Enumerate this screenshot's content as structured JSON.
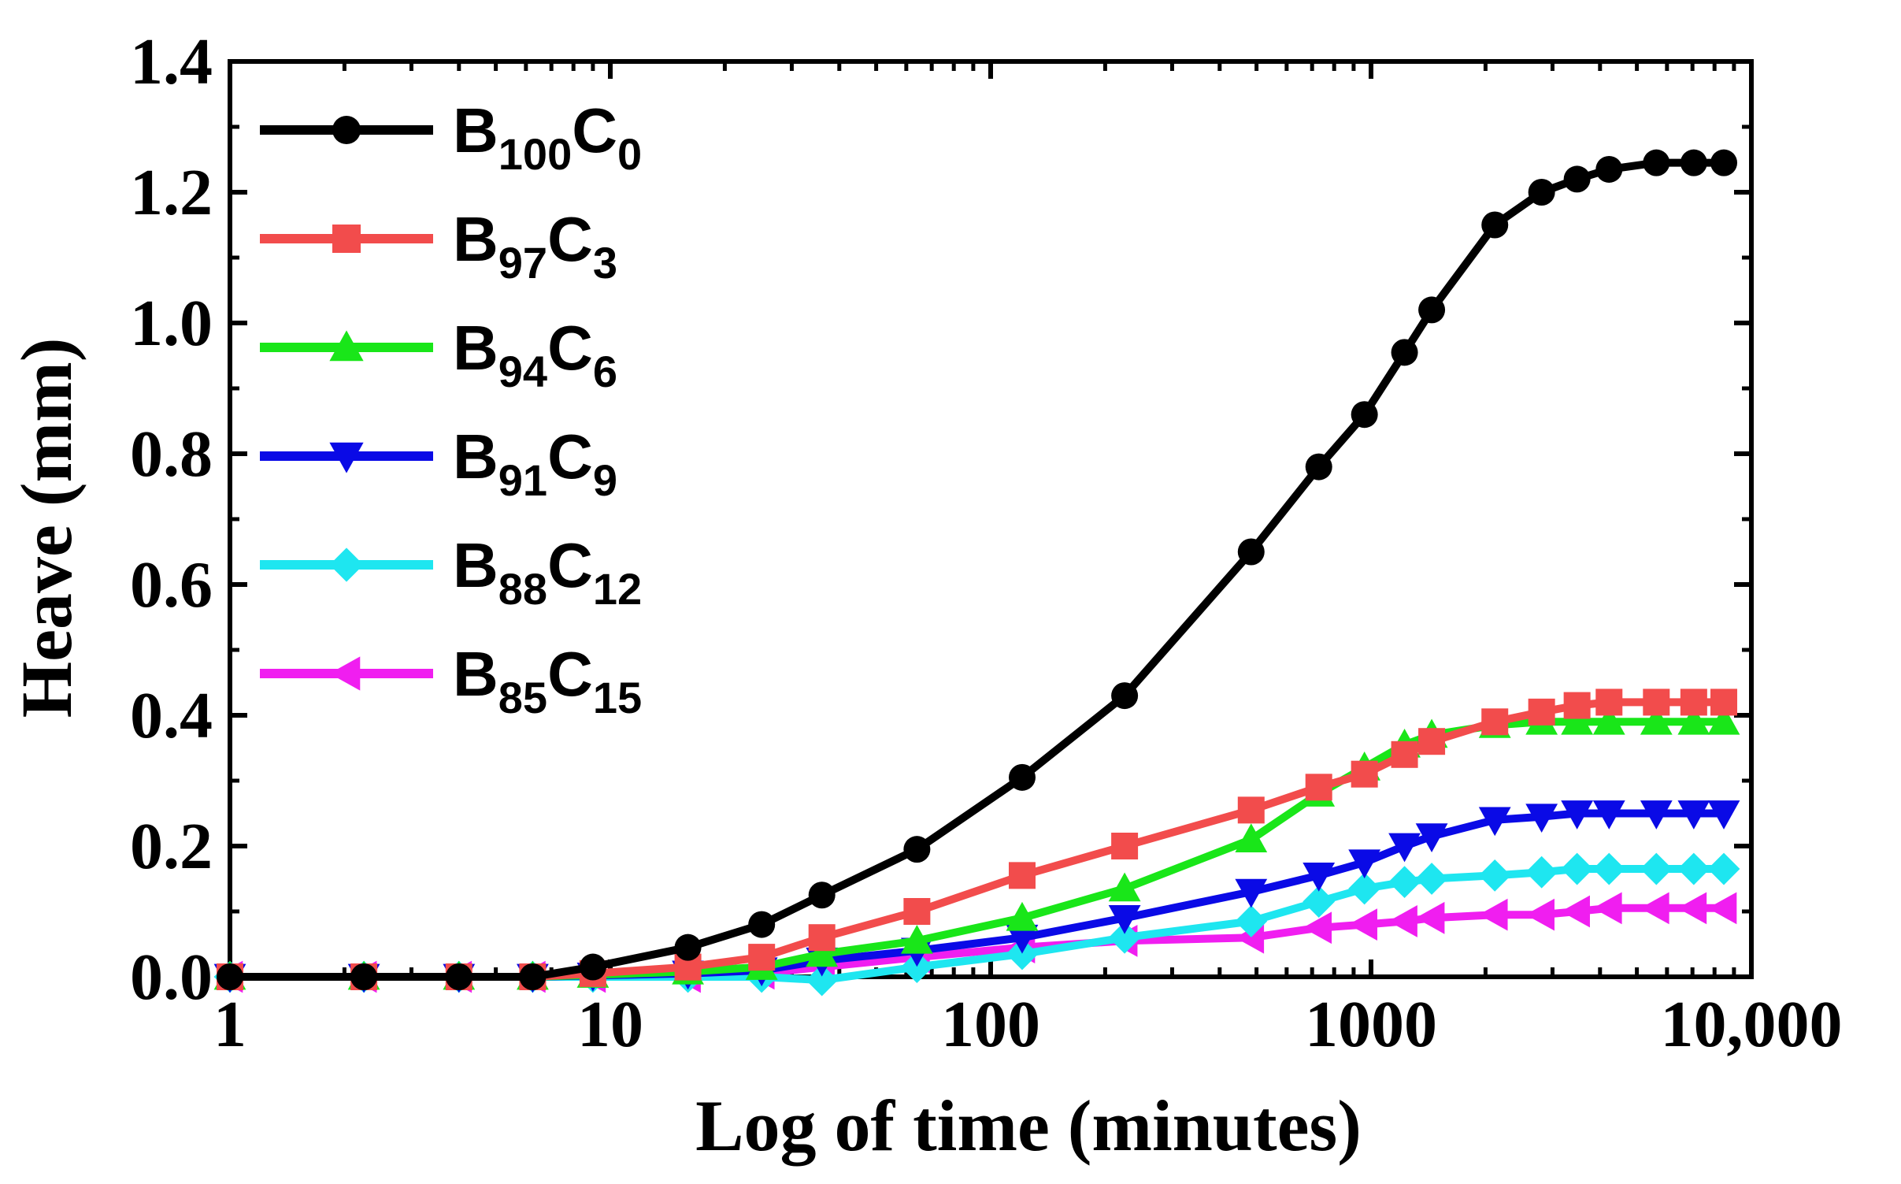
{
  "chart_data": {
    "type": "line",
    "title": "",
    "xlabel": "Log of time (minutes)",
    "ylabel": "Heave (mm)",
    "xscale": "log",
    "xlim": [
      1,
      10000
    ],
    "ylim": [
      0,
      1.4
    ],
    "xticks": [
      {
        "value": 1,
        "label": "1"
      },
      {
        "value": 10,
        "label": "10"
      },
      {
        "value": 100,
        "label": "100"
      },
      {
        "value": 1000,
        "label": "1000"
      },
      {
        "value": 10000,
        "label": "10,000"
      }
    ],
    "yticks": [
      {
        "value": 0.0,
        "label": "0.0"
      },
      {
        "value": 0.2,
        "label": "0.2"
      },
      {
        "value": 0.4,
        "label": "0.4"
      },
      {
        "value": 0.6,
        "label": "0.6"
      },
      {
        "value": 0.8,
        "label": "0.8"
      },
      {
        "value": 1.0,
        "label": "1.0"
      },
      {
        "value": 1.2,
        "label": "1.2"
      },
      {
        "value": 1.4,
        "label": "1.4"
      }
    ],
    "legend_position": "top-left",
    "series": [
      {
        "name": "B100C0",
        "label_main_1": "B",
        "label_sub_1": "100",
        "label_main_2": "C",
        "label_sub_2": "0",
        "color": "#000000",
        "marker": "circle",
        "x": [
          1,
          2.25,
          4,
          6.25,
          9,
          16,
          25,
          36,
          64,
          121,
          225,
          484,
          729,
          961,
          1225,
          1444,
          2116,
          2809,
          3481,
          4225,
          5625,
          7056,
          8464
        ],
        "y": [
          0,
          0,
          0,
          0,
          0.015,
          0.045,
          0.08,
          0.125,
          0.195,
          0.305,
          0.43,
          0.65,
          0.78,
          0.86,
          0.955,
          1.02,
          1.15,
          1.2,
          1.22,
          1.235,
          1.245,
          1.245,
          1.245
        ]
      },
      {
        "name": "B97C3",
        "label_main_1": "B",
        "label_sub_1": "97",
        "label_main_2": "C",
        "label_sub_2": "3",
        "color": "#f24c4c",
        "marker": "square",
        "x": [
          1,
          2.25,
          4,
          6.25,
          9,
          16,
          25,
          36,
          64,
          121,
          225,
          484,
          729,
          961,
          1225,
          1444,
          2116,
          2809,
          3481,
          4225,
          5625,
          7056,
          8464
        ],
        "y": [
          0,
          0,
          0,
          0,
          0.005,
          0.015,
          0.03,
          0.06,
          0.1,
          0.155,
          0.2,
          0.255,
          0.29,
          0.31,
          0.34,
          0.36,
          0.39,
          0.405,
          0.415,
          0.42,
          0.42,
          0.42,
          0.42
        ]
      },
      {
        "name": "B94C6",
        "label_main_1": "B",
        "label_sub_1": "94",
        "label_main_2": "C",
        "label_sub_2": "6",
        "color": "#19e619",
        "marker": "triangle-up",
        "x": [
          1,
          2.25,
          4,
          6.25,
          9,
          16,
          25,
          36,
          64,
          121,
          225,
          484,
          729,
          961,
          1225,
          1444,
          2116,
          2809,
          3481,
          4225,
          5625,
          7056,
          8464
        ],
        "y": [
          0,
          0,
          0,
          0,
          0.003,
          0.008,
          0.015,
          0.035,
          0.055,
          0.09,
          0.135,
          0.21,
          0.28,
          0.32,
          0.355,
          0.37,
          0.385,
          0.39,
          0.39,
          0.39,
          0.39,
          0.39,
          0.39
        ]
      },
      {
        "name": "B91C9",
        "label_main_1": "B",
        "label_sub_1": "91",
        "label_main_2": "C",
        "label_sub_2": "9",
        "color": "#0a0ae6",
        "marker": "triangle-down",
        "x": [
          1,
          2.25,
          4,
          6.25,
          9,
          16,
          25,
          36,
          64,
          121,
          225,
          484,
          729,
          961,
          1225,
          1444,
          2116,
          2809,
          3481,
          4225,
          5625,
          7056,
          8464
        ],
        "y": [
          0,
          0,
          0,
          0,
          0.002,
          0.005,
          0.01,
          0.025,
          0.04,
          0.06,
          0.09,
          0.13,
          0.155,
          0.175,
          0.2,
          0.215,
          0.24,
          0.245,
          0.25,
          0.25,
          0.25,
          0.25,
          0.25
        ]
      },
      {
        "name": "B88C12",
        "label_main_1": "B",
        "label_sub_1": "88",
        "label_main_2": "C",
        "label_sub_2": "12",
        "color": "#1ee6f0",
        "marker": "diamond",
        "x": [
          1,
          2.25,
          4,
          6.25,
          9,
          16,
          25,
          36,
          64,
          121,
          225,
          484,
          729,
          961,
          1225,
          1444,
          2116,
          2809,
          3481,
          4225,
          5625,
          7056,
          8464
        ],
        "y": [
          0,
          0,
          0,
          0,
          0,
          0,
          0,
          -0.005,
          0.015,
          0.035,
          0.06,
          0.085,
          0.115,
          0.135,
          0.145,
          0.15,
          0.155,
          0.16,
          0.165,
          0.165,
          0.165,
          0.165,
          0.165
        ]
      },
      {
        "name": "B85C15",
        "label_main_1": "B",
        "label_sub_1": "85",
        "label_main_2": "C",
        "label_sub_2": "15",
        "color": "#f01ef0",
        "marker": "triangle-left",
        "x": [
          1,
          2.25,
          4,
          6.25,
          9,
          16,
          25,
          36,
          64,
          121,
          225,
          484,
          729,
          961,
          1225,
          1444,
          2116,
          2809,
          3481,
          4225,
          5625,
          7056,
          8464
        ],
        "y": [
          0,
          0,
          0,
          0,
          0,
          0,
          0.005,
          0.015,
          0.03,
          0.045,
          0.055,
          0.06,
          0.075,
          0.08,
          0.085,
          0.09,
          0.095,
          0.095,
          0.1,
          0.105,
          0.105,
          0.105,
          0.105
        ]
      }
    ]
  }
}
